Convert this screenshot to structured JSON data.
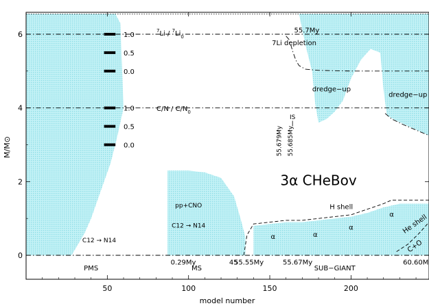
{
  "chart_data": {
    "type": "area",
    "title": "",
    "xlabel": "model number",
    "ylabel": "M/M⊙",
    "xlim": [
      0,
      248
    ],
    "ylim": [
      -0.6,
      6.6
    ],
    "x_ticks": [
      50,
      100,
      150,
      200
    ],
    "y_ticks": [
      0,
      2,
      4,
      6
    ],
    "grid": false,
    "legend": "none",
    "colors": {
      "convective": "#a8e8ee",
      "line": "#000000"
    },
    "phases": [
      {
        "label": "PMS",
        "x": 40
      },
      {
        "label": "MS",
        "x": 105
      },
      {
        "label": "SUB−GIANT",
        "x": 190
      }
    ],
    "age_markers": [
      {
        "label": "0.29My",
        "x": 89,
        "y": -0.18
      },
      {
        "label": "45",
        "x": 125,
        "y": -0.18,
        "faded": true
      },
      {
        "label": "55.55My",
        "x": 128,
        "y": -0.18
      },
      {
        "label": "55.67My",
        "x": 158,
        "y": -0.18
      },
      {
        "label": "60.60My",
        "x": 232,
        "y": -0.18
      },
      {
        "label": "55.7My",
        "x": 165,
        "y": 6.12
      }
    ],
    "abundance_scales": [
      {
        "name": "7Li / 7Li0",
        "y_top": 6.0,
        "levels": [
          {
            "label": "1.0",
            "y": 6.0
          },
          {
            "label": "0.5",
            "y": 5.5
          },
          {
            "label": "0.0",
            "y": 5.0
          }
        ]
      },
      {
        "name": "C/N / C/N0",
        "y_top": 4.0,
        "levels": [
          {
            "label": "1.0",
            "y": 4.0
          },
          {
            "label": "0.5",
            "y": 3.5
          },
          {
            "label": "0.0",
            "y": 3.0
          }
        ]
      }
    ],
    "scale_labels": {
      "li_ratio": {
        "n1": "7",
        "a1": "Li",
        "sep": " / ",
        "n2": "7",
        "a2": "Li",
        "s2": "0"
      },
      "cn_ratio": {
        "a1": "C/N",
        "sep": " / ",
        "a2": "C/N",
        "s2": "0"
      }
    },
    "annotations": [
      {
        "text": "7Li depletion",
        "x": 165,
        "y": 5.7
      },
      {
        "text": "dredge−up",
        "x": 188,
        "y": 4.45
      },
      {
        "text": "dredge−up",
        "x": 235,
        "y": 4.3
      },
      {
        "text": "IS",
        "x": 164,
        "y": 3.7
      },
      {
        "text": "55.679My",
        "x": 157,
        "y": 3.1,
        "vertical": true
      },
      {
        "text": "55.685My",
        "x": 164,
        "y": 3.1,
        "vertical": true
      },
      {
        "text": "3α  CHeBov",
        "x": 180,
        "y": 1.9
      },
      {
        "text": "H shell",
        "x": 194,
        "y": 1.25
      },
      {
        "text": "He shell",
        "x": 240,
        "y": 0.8
      },
      {
        "text": "C+O",
        "x": 240,
        "y": 0.2
      },
      {
        "text": "pp+CNO",
        "x": 100,
        "y": 1.3
      },
      {
        "text": "C12 → N14",
        "x": 100,
        "y": 0.75
      },
      {
        "text": "C12 → N14",
        "x": 45,
        "y": 0.35
      },
      {
        "text": "α",
        "x": 152,
        "y": 0.45
      },
      {
        "text": "α",
        "x": 178,
        "y": 0.5
      },
      {
        "text": "α",
        "x": 200,
        "y": 0.7
      },
      {
        "text": "α",
        "x": 225,
        "y": 1.05
      }
    ],
    "lines": [
      {
        "name": "surface",
        "style": "dotted",
        "x": [
          0,
          248
        ],
        "y": [
          6.55,
          6.55
        ]
      },
      {
        "name": "Li reference",
        "style": "dash-dot",
        "x": [
          0,
          248
        ],
        "y": [
          6.0,
          6.0
        ]
      },
      {
        "name": "C/N reference",
        "style": "dash-dot",
        "x": [
          0,
          248
        ],
        "y": [
          4.0,
          4.0
        ]
      },
      {
        "name": "convective envelope base",
        "style": "dash-dot",
        "x": [
          160,
          162,
          164,
          166,
          168,
          172,
          180,
          200,
          220,
          248
        ],
        "y": [
          5.95,
          5.85,
          5.55,
          5.3,
          5.15,
          5.05,
          5.02,
          5.0,
          5.0,
          5.0
        ]
      },
      {
        "name": "envelope base (dredge-up)",
        "style": "dash-dot",
        "x": [
          221,
          225,
          232,
          240,
          248
        ],
        "y": [
          3.85,
          3.7,
          3.55,
          3.4,
          3.25
        ]
      },
      {
        "name": "H shell",
        "style": "dashed",
        "x": [
          134,
          136,
          140,
          150,
          160,
          170,
          180,
          190,
          200,
          210,
          220,
          225,
          248
        ],
        "y": [
          0.0,
          0.55,
          0.85,
          0.9,
          0.95,
          0.95,
          1.0,
          1.05,
          1.1,
          1.25,
          1.4,
          1.5,
          1.5
        ]
      },
      {
        "name": "He shell",
        "style": "dashed",
        "x": [
          228,
          235,
          242,
          248
        ],
        "y": [
          0.1,
          0.3,
          0.6,
          0.9
        ]
      },
      {
        "name": "zero line",
        "style": "dash-dot",
        "x": [
          0,
          248
        ],
        "y": [
          0.0,
          0.0
        ]
      }
    ],
    "convective_regions": [
      {
        "name": "PMS envelope",
        "x": [
          0,
          30,
          35,
          40,
          45,
          50,
          55,
          58,
          60,
          56,
          52,
          48,
          44,
          40,
          36,
          32,
          28,
          0
        ],
        "y": [
          6.55,
          6.55,
          6.55,
          6.55,
          6.55,
          6.55,
          6.55,
          6.3,
          4.0,
          3.2,
          2.5,
          2.0,
          1.5,
          1.0,
          0.6,
          0.3,
          0.0,
          0.0
        ]
      },
      {
        "name": "MS convective core",
        "x": [
          87,
          90,
          100,
          110,
          120,
          128,
          132,
          135,
          135,
          87
        ],
        "y": [
          2.3,
          2.3,
          2.3,
          2.25,
          2.1,
          1.6,
          1.0,
          0.5,
          0.0,
          0.0
        ]
      },
      {
        "name": "Subgiant convective envelope",
        "x": [
          168,
          172,
          176,
          180,
          190,
          200,
          206,
          210,
          215,
          220,
          224,
          230,
          240,
          248,
          248,
          238,
          228,
          222,
          220,
          218,
          212,
          206,
          200,
          195,
          190,
          185,
          180,
          178,
          176,
          172,
          168
        ],
        "y": [
          6.55,
          6.55,
          6.55,
          6.55,
          6.55,
          6.55,
          6.55,
          6.55,
          6.55,
          6.55,
          6.55,
          6.55,
          6.55,
          6.55,
          3.25,
          3.45,
          3.65,
          3.8,
          4.5,
          5.5,
          5.6,
          5.3,
          4.8,
          4.2,
          3.9,
          3.7,
          3.6,
          4.1,
          5.0,
          5.7,
          6.55
        ]
      },
      {
        "name": "Subgiant core region",
        "x": [
          140,
          150,
          160,
          170,
          180,
          190,
          200,
          210,
          220,
          230,
          240,
          248,
          248,
          240,
          230,
          220,
          210,
          200,
          190,
          180,
          170,
          160,
          150,
          140
        ],
        "y": [
          0.8,
          0.85,
          0.9,
          0.9,
          0.95,
          1.0,
          1.05,
          1.15,
          1.3,
          1.4,
          1.4,
          1.4,
          0.0,
          0.0,
          0.0,
          0.0,
          0.0,
          0.0,
          0.0,
          0.0,
          0.0,
          0.0,
          0.0,
          0.0
        ]
      }
    ]
  }
}
